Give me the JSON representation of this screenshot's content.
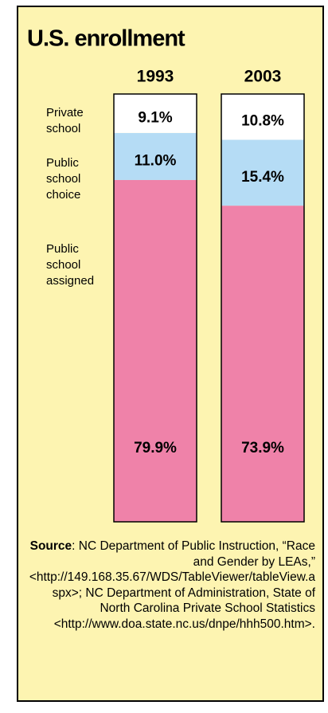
{
  "chart_data": {
    "type": "bar",
    "stacked": true,
    "title": "U.S. enrollment",
    "categories": [
      "1993",
      "2003"
    ],
    "ylim": [
      0,
      100
    ],
    "series": [
      {
        "name": "Private school",
        "color": "#ffffff",
        "values": [
          9.1,
          10.8
        ],
        "value_labels": [
          "9.1%",
          "10.8%"
        ]
      },
      {
        "name": "Public school choice",
        "color": "#b5dcf5",
        "values": [
          11.0,
          15.4
        ],
        "value_labels": [
          "11.0%",
          "15.4%"
        ]
      },
      {
        "name": "Public school assigned",
        "color": "#ef82a9",
        "values": [
          79.9,
          73.9
        ],
        "value_labels": [
          "79.9%",
          "73.9%"
        ]
      }
    ],
    "source_label": "Source",
    "source_text": ": NC Department of Public Instruction, “Race and Gender by LEAs,” <http://149.168.35.67/WDS/TableViewer/tableView.aspx>; NC Department of Administration, State of North Carolina Private School Statistics <http://www.doa.state.nc.us/dnpe/hhh500.htm>."
  }
}
